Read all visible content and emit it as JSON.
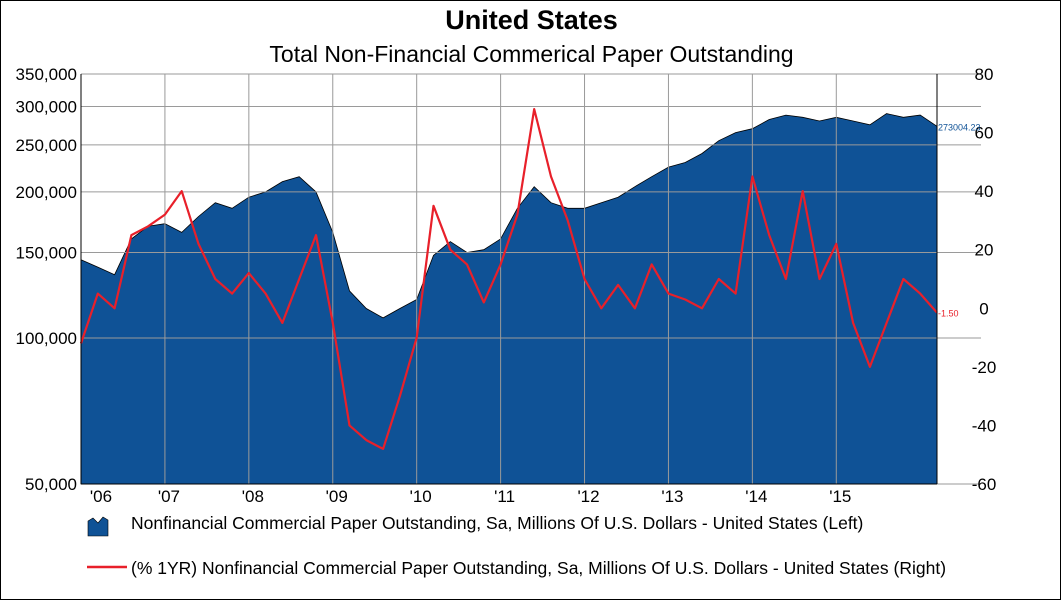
{
  "chart_data": {
    "type": "area",
    "title": "United States",
    "subtitle": "Total Non-Financial Commerical Paper Outstanding",
    "x_tick_labels": [
      "'06",
      "'07",
      "'08",
      "'09",
      "'10",
      "'11",
      "'12",
      "'13",
      "'14",
      "'15"
    ],
    "x_range": [
      2006.0,
      2016.2
    ],
    "left_axis": {
      "scale": "log",
      "range": [
        50000,
        350000
      ],
      "tick_labels": [
        "350,000",
        "300,000",
        "250,000",
        "200,000",
        "150,000",
        "100,000",
        "50,000"
      ],
      "tick_values": [
        350000,
        300000,
        250000,
        200000,
        150000,
        100000,
        50000
      ]
    },
    "right_axis": {
      "scale": "linear",
      "range": [
        -60,
        80
      ],
      "tick_labels": [
        "80",
        "60",
        "40",
        "20",
        "0",
        "-20",
        "-40",
        "-60"
      ],
      "tick_values": [
        80,
        60,
        40,
        20,
        0,
        -20,
        -40,
        -60
      ]
    },
    "grid": true,
    "legend_position": "bottom",
    "series": [
      {
        "name": "Nonfinancial Commercial Paper Outstanding, Sa, Millions Of U.S. Dollars - United States (Left)",
        "type": "area",
        "axis": "left",
        "color": "#0f5296",
        "last_value_label": "273004.23",
        "x": [
          2006.0,
          2006.2,
          2006.4,
          2006.6,
          2006.8,
          2007.0,
          2007.2,
          2007.4,
          2007.6,
          2007.8,
          2008.0,
          2008.2,
          2008.4,
          2008.6,
          2008.8,
          2009.0,
          2009.2,
          2009.4,
          2009.6,
          2009.8,
          2010.0,
          2010.2,
          2010.4,
          2010.6,
          2010.8,
          2011.0,
          2011.2,
          2011.4,
          2011.6,
          2011.8,
          2012.0,
          2012.2,
          2012.4,
          2012.6,
          2012.8,
          2013.0,
          2013.2,
          2013.4,
          2013.6,
          2013.8,
          2014.0,
          2014.2,
          2014.4,
          2014.6,
          2014.8,
          2015.0,
          2015.2,
          2015.4,
          2015.6,
          2015.8,
          2016.0,
          2016.2
        ],
        "values": [
          145000,
          140000,
          135000,
          160000,
          170000,
          172000,
          165000,
          178000,
          190000,
          185000,
          195000,
          200000,
          210000,
          215000,
          200000,
          165000,
          125000,
          115000,
          110000,
          115000,
          120000,
          148000,
          158000,
          150000,
          152000,
          160000,
          185000,
          205000,
          190000,
          185000,
          185000,
          190000,
          195000,
          205000,
          215000,
          225000,
          230000,
          240000,
          255000,
          265000,
          270000,
          282000,
          288000,
          285000,
          280000,
          285000,
          280000,
          275000,
          290000,
          285000,
          288000,
          273004
        ]
      },
      {
        "name": "(% 1YR) Nonfinancial Commercial Paper Outstanding, Sa, Millions Of U.S. Dollars - United States (Right)",
        "type": "line",
        "axis": "right",
        "color": "#e8202a",
        "last_value_label": "-1.50",
        "x": [
          2006.0,
          2006.2,
          2006.4,
          2006.6,
          2006.8,
          2007.0,
          2007.2,
          2007.4,
          2007.6,
          2007.8,
          2008.0,
          2008.2,
          2008.4,
          2008.6,
          2008.8,
          2009.0,
          2009.2,
          2009.4,
          2009.6,
          2009.8,
          2010.0,
          2010.2,
          2010.4,
          2010.6,
          2010.8,
          2011.0,
          2011.2,
          2011.4,
          2011.6,
          2011.8,
          2012.0,
          2012.2,
          2012.4,
          2012.6,
          2012.8,
          2013.0,
          2013.2,
          2013.4,
          2013.6,
          2013.8,
          2014.0,
          2014.2,
          2014.4,
          2014.6,
          2014.8,
          2015.0,
          2015.2,
          2015.4,
          2015.6,
          2015.8,
          2016.0,
          2016.2
        ],
        "values": [
          -12,
          5,
          0,
          25,
          28,
          32,
          40,
          22,
          10,
          5,
          12,
          5,
          -5,
          10,
          25,
          -5,
          -40,
          -45,
          -48,
          -30,
          -10,
          35,
          20,
          15,
          2,
          15,
          32,
          68,
          45,
          30,
          10,
          0,
          8,
          0,
          15,
          5,
          3,
          0,
          10,
          5,
          45,
          25,
          10,
          40,
          10,
          22,
          -5,
          -20,
          -5,
          10,
          5,
          -1.5
        ]
      }
    ]
  },
  "legend": {
    "area_label": "Nonfinancial Commercial Paper Outstanding, Sa, Millions Of U.S. Dollars - United States (Left)",
    "line_label": "(% 1YR) Nonfinancial Commercial Paper Outstanding, Sa, Millions Of U.S. Dollars - United States  (Right)"
  }
}
